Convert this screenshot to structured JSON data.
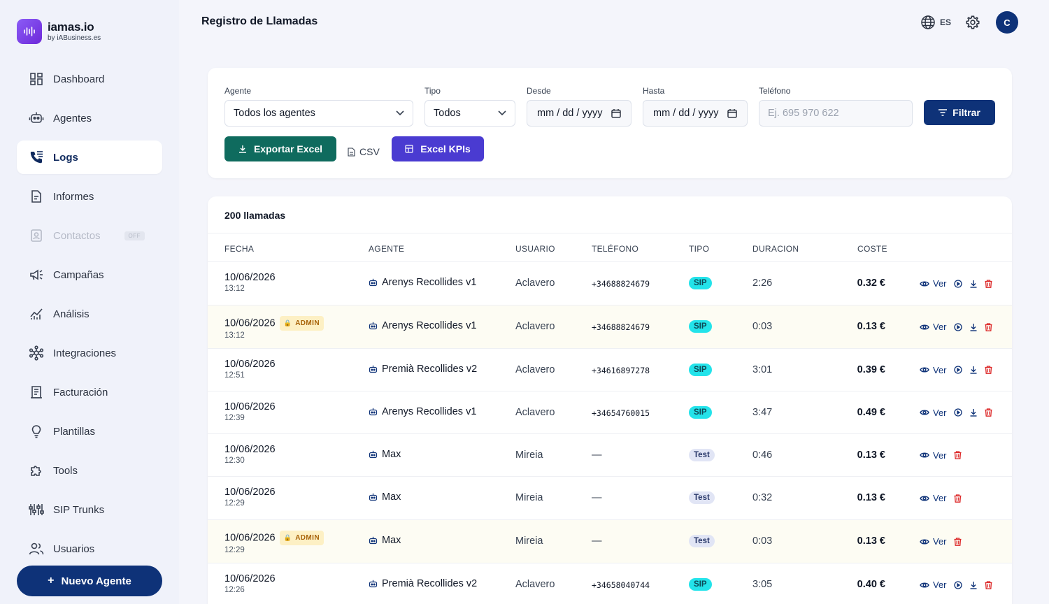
{
  "brand": {
    "name": "iamas.io",
    "sub": "by iABusiness.es"
  },
  "nav": [
    {
      "label": "Dashboard",
      "icon": "dashboard-icon"
    },
    {
      "label": "Agentes",
      "icon": "robot-icon"
    },
    {
      "label": "Logs",
      "icon": "phone-log-icon",
      "active": true
    },
    {
      "label": "Informes",
      "icon": "report-icon"
    },
    {
      "label": "Contactos",
      "icon": "contacts-icon",
      "disabled": true,
      "badge": "OFF"
    },
    {
      "label": "Campañas",
      "icon": "megaphone-icon"
    },
    {
      "label": "Análisis",
      "icon": "chart-icon"
    },
    {
      "label": "Integraciones",
      "icon": "hub-icon"
    },
    {
      "label": "Facturación",
      "icon": "invoice-icon"
    },
    {
      "label": "Plantillas",
      "icon": "lightbulb-icon"
    },
    {
      "label": "Tools",
      "icon": "puzzle-icon"
    },
    {
      "label": "SIP Trunks",
      "icon": "sliders-icon"
    },
    {
      "label": "Usuarios",
      "icon": "users-icon"
    }
  ],
  "new_agent": {
    "plus": "+",
    "label": "Nuevo Agente"
  },
  "header": {
    "title": "Registro de Llamadas",
    "lang": "ES",
    "avatar": "C"
  },
  "filters": {
    "agent": {
      "label": "Agente",
      "value": "Todos los agentes"
    },
    "type": {
      "label": "Tipo",
      "value": "Todos"
    },
    "from": {
      "label": "Desde",
      "value": "mm / dd / yyyy"
    },
    "to": {
      "label": "Hasta",
      "value": "mm / dd / yyyy"
    },
    "phone": {
      "label": "Teléfono",
      "placeholder": "Ej. 695 970 622"
    },
    "filter_button": "Filtrar",
    "export_excel": "Exportar Excel",
    "csv": "CSV",
    "excel_kpis": "Excel KPIs"
  },
  "table": {
    "count": "200 llamadas",
    "headers": {
      "date": "FECHA",
      "agent": "AGENTE",
      "user": "USUARIO",
      "phone": "TELÉFONO",
      "type": "TIPO",
      "duration": "DURACION",
      "cost": "COSTE"
    },
    "view_label": "Ver",
    "admin_label": "ADMIN",
    "rows": [
      {
        "date": "10/06/2026",
        "time": "13:12",
        "admin": false,
        "agent": "Arenys Recollides v1",
        "user": "Aclavero",
        "phone": "+34688824679",
        "type": "SIP",
        "duration": "2:26",
        "cost": "0.32 €"
      },
      {
        "date": "10/06/2026",
        "time": "13:12",
        "admin": true,
        "agent": "Arenys Recollides v1",
        "user": "Aclavero",
        "phone": "+34688824679",
        "type": "SIP",
        "duration": "0:03",
        "cost": "0.13 €"
      },
      {
        "date": "10/06/2026",
        "time": "12:51",
        "admin": false,
        "agent": "Premià Recollides v2",
        "user": "Aclavero",
        "phone": "+34616897278",
        "type": "SIP",
        "duration": "3:01",
        "cost": "0.39 €"
      },
      {
        "date": "10/06/2026",
        "time": "12:39",
        "admin": false,
        "agent": "Arenys Recollides v1",
        "user": "Aclavero",
        "phone": "+34654760015",
        "type": "SIP",
        "duration": "3:47",
        "cost": "0.49 €"
      },
      {
        "date": "10/06/2026",
        "time": "12:30",
        "admin": false,
        "agent": "Max",
        "user": "Mireia",
        "phone": "—",
        "type": "Test",
        "duration": "0:46",
        "cost": "0.13 €"
      },
      {
        "date": "10/06/2026",
        "time": "12:29",
        "admin": false,
        "agent": "Max",
        "user": "Mireia",
        "phone": "—",
        "type": "Test",
        "duration": "0:32",
        "cost": "0.13 €"
      },
      {
        "date": "10/06/2026",
        "time": "12:29",
        "admin": true,
        "agent": "Max",
        "user": "Mireia",
        "phone": "—",
        "type": "Test",
        "duration": "0:03",
        "cost": "0.13 €"
      },
      {
        "date": "10/06/2026",
        "time": "12:26",
        "admin": false,
        "agent": "Premià Recollides v2",
        "user": "Aclavero",
        "phone": "+34658040744",
        "type": "SIP",
        "duration": "3:05",
        "cost": "0.40 €"
      }
    ]
  }
}
